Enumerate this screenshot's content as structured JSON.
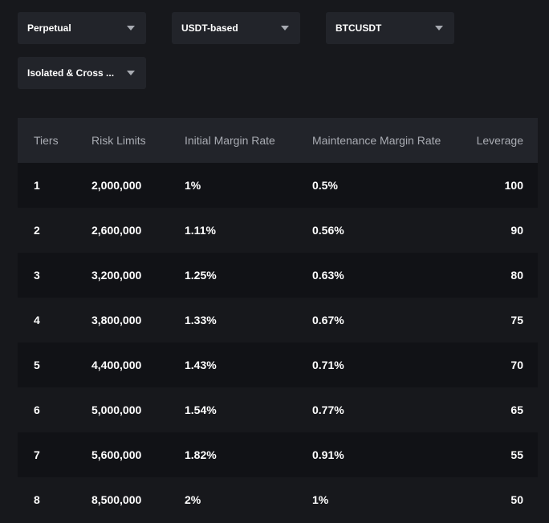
{
  "filters": {
    "product": "Perpetual",
    "margin_asset": "USDT-based",
    "symbol": "BTCUSDT",
    "margin_mode": "Isolated & Cross ..."
  },
  "table": {
    "headers": {
      "tiers": "Tiers",
      "risk_limits": "Risk Limits",
      "initial_margin_rate": "Initial Margin Rate",
      "maintenance_margin_rate": "Maintenance Margin Rate",
      "leverage": "Leverage"
    },
    "rows": [
      {
        "tier": "1",
        "risk_limit": "2,000,000",
        "imr": "1%",
        "mmr": "0.5%",
        "leverage": "100"
      },
      {
        "tier": "2",
        "risk_limit": "2,600,000",
        "imr": "1.11%",
        "mmr": "0.56%",
        "leverage": "90"
      },
      {
        "tier": "3",
        "risk_limit": "3,200,000",
        "imr": "1.25%",
        "mmr": "0.63%",
        "leverage": "80"
      },
      {
        "tier": "4",
        "risk_limit": "3,800,000",
        "imr": "1.33%",
        "mmr": "0.67%",
        "leverage": "75"
      },
      {
        "tier": "5",
        "risk_limit": "4,400,000",
        "imr": "1.43%",
        "mmr": "0.71%",
        "leverage": "70"
      },
      {
        "tier": "6",
        "risk_limit": "5,000,000",
        "imr": "1.54%",
        "mmr": "0.77%",
        "leverage": "65"
      },
      {
        "tier": "7",
        "risk_limit": "5,600,000",
        "imr": "1.82%",
        "mmr": "0.91%",
        "leverage": "55"
      },
      {
        "tier": "8",
        "risk_limit": "8,500,000",
        "imr": "2%",
        "mmr": "1%",
        "leverage": "50"
      }
    ]
  }
}
